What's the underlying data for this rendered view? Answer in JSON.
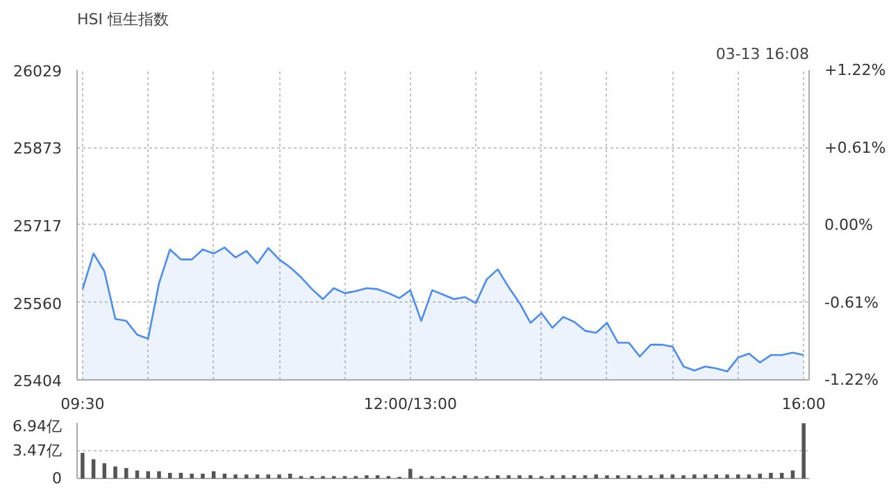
{
  "chart_data": [
    {
      "type": "area",
      "title": "HSI 恒生指数",
      "annotations": [
        "03-13 16:08"
      ],
      "categories": [
        "09:30",
        null,
        null,
        null,
        null,
        null,
        null,
        null,
        null,
        null,
        null,
        null,
        null,
        null,
        null,
        null,
        null,
        null,
        null,
        null,
        null,
        null,
        null,
        null,
        null,
        null,
        null,
        null,
        null,
        null,
        "12:00/13:00",
        null,
        null,
        null,
        null,
        null,
        null,
        null,
        null,
        null,
        null,
        null,
        null,
        null,
        null,
        null,
        null,
        null,
        null,
        null,
        null,
        null,
        null,
        null,
        null,
        null,
        null,
        null,
        null,
        null,
        null,
        null,
        null,
        null,
        null,
        null,
        "16:00"
      ],
      "series": [
        {
          "color": "#4a8cf0",
          "values": [
            25587,
            25659,
            25623,
            25527,
            25523,
            25495,
            25487,
            25599,
            25667,
            25647,
            25647,
            25667,
            25659,
            25671,
            25651,
            25664,
            25639,
            25670,
            25647,
            25631,
            25611,
            25587,
            25567,
            25589,
            25579,
            25583,
            25589,
            25587,
            25579,
            25569,
            25585,
            25523,
            25585,
            25576,
            25567,
            25571,
            25559,
            25607,
            25627,
            25591,
            25559,
            25519,
            25539,
            25509,
            25531,
            25521,
            25503,
            25499,
            25519,
            25479,
            25479,
            25451,
            25475,
            25475,
            25471,
            25431,
            25423,
            25431,
            25427,
            25421,
            25449,
            25457,
            25439,
            25454,
            25454,
            25459,
            25454
          ]
        }
      ],
      "ylim": [
        25404,
        26029
      ],
      "yticks": [
        25404,
        25560,
        25717,
        25873,
        26029
      ],
      "y2lim": [
        -1.22,
        1.22
      ],
      "y2ticks": [
        {
          "value": -1.22,
          "label": "-1.22%"
        },
        {
          "value": -0.61,
          "label": "-0.61%"
        },
        {
          "value": 0,
          "label": "0.00%"
        },
        {
          "value": 0.61,
          "label": "+0.61%"
        },
        {
          "value": 1.22,
          "label": "+1.22%"
        }
      ],
      "grid": true
    },
    {
      "type": "bar",
      "categories": [
        null,
        null,
        null,
        null,
        null,
        null,
        null,
        null,
        null,
        null,
        null,
        null,
        null,
        null,
        null,
        null,
        null,
        null,
        null,
        null,
        null,
        null,
        null,
        null,
        null,
        null,
        null,
        null,
        null,
        null,
        null,
        null,
        null,
        null,
        null,
        null,
        null,
        null,
        null,
        null,
        null,
        null,
        null,
        null,
        null,
        null,
        null,
        null,
        null,
        null,
        null,
        null,
        null,
        null,
        null,
        null,
        null,
        null,
        null,
        null,
        null,
        null,
        null,
        null,
        null,
        null,
        null
      ],
      "series": [
        {
          "color": "#555555",
          "values": [
            3.2,
            2.4,
            1.9,
            1.5,
            1.3,
            1.0,
            0.9,
            0.9,
            0.7,
            0.7,
            0.6,
            0.6,
            0.9,
            0.6,
            0.5,
            0.5,
            0.5,
            0.5,
            0.5,
            0.6,
            0.3,
            0.3,
            0.3,
            0.3,
            0.3,
            0.3,
            0.4,
            0.4,
            0.3,
            0.2,
            1.2,
            0.3,
            0.3,
            0.3,
            0.3,
            0.4,
            0.3,
            0.3,
            0.4,
            0.4,
            0.4,
            0.4,
            0.3,
            0.4,
            0.4,
            0.4,
            0.4,
            0.5,
            0.4,
            0.4,
            0.4,
            0.4,
            0.4,
            0.5,
            0.5,
            0.4,
            0.5,
            0.5,
            0.5,
            0.5,
            0.5,
            0.5,
            0.6,
            0.7,
            0.7,
            1.0,
            6.9
          ]
        }
      ],
      "ylim": [
        0,
        6.94
      ],
      "yticks": [
        0,
        {
          "value": 3.47,
          "label": "3.47亿"
        },
        {
          "value": 6.94,
          "label": "6.94亿"
        }
      ],
      "tick_labels": "y",
      "grid": "y"
    }
  ]
}
